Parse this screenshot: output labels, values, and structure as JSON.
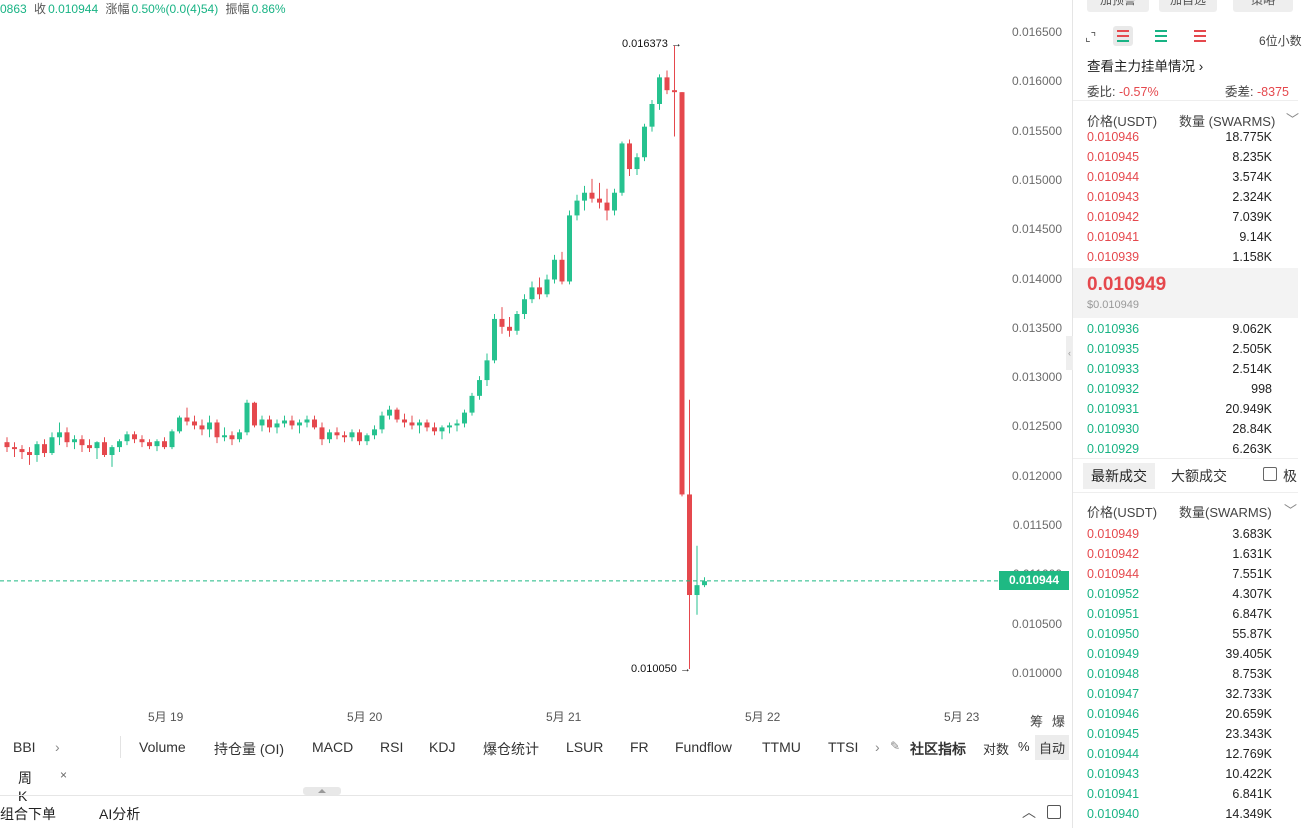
{
  "info": {
    "open_partial": "0863",
    "close_label": "收",
    "close": "0.010944",
    "change_label": "涨幅",
    "change": "0.50%(0.0(4)54)",
    "amp_label": "振幅",
    "amp": "0.86%"
  },
  "chart_data": {
    "type": "candlestick",
    "y_ticks": [
      "0.016500",
      "0.016000",
      "0.015500",
      "0.015000",
      "0.014500",
      "0.014000",
      "0.013500",
      "0.013000",
      "0.012500",
      "0.012000",
      "0.011500",
      "0.011000",
      "0.010500",
      "0.010000"
    ],
    "x_ticks": [
      "5月 19",
      "5月 20",
      "5月 21",
      "5月 22",
      "5月 23"
    ],
    "high_label": "0.016373",
    "low_label": "0.010050",
    "last_price": "0.010944",
    "ylim": [
      0.01,
      0.01655
    ],
    "colors": {
      "up": "#26c28f",
      "down": "#e5484d"
    },
    "candles": [
      [
        0.01235,
        0.0124,
        0.01225,
        0.0123
      ],
      [
        0.0123,
        0.01235,
        0.0122,
        0.01228
      ],
      [
        0.01228,
        0.01232,
        0.01218,
        0.01225
      ],
      [
        0.01225,
        0.0123,
        0.01212,
        0.01222
      ],
      [
        0.01222,
        0.01236,
        0.01215,
        0.01233
      ],
      [
        0.01233,
        0.01238,
        0.0122,
        0.01224
      ],
      [
        0.01224,
        0.01245,
        0.01222,
        0.0124
      ],
      [
        0.0124,
        0.01255,
        0.01232,
        0.01245
      ],
      [
        0.01245,
        0.0125,
        0.0123,
        0.01235
      ],
      [
        0.01235,
        0.01242,
        0.01228,
        0.01238
      ],
      [
        0.01238,
        0.01242,
        0.01225,
        0.01232
      ],
      [
        0.01232,
        0.01238,
        0.01225,
        0.01229
      ],
      [
        0.01229,
        0.01236,
        0.01218,
        0.01235
      ],
      [
        0.01235,
        0.0124,
        0.0122,
        0.01222
      ],
      [
        0.01222,
        0.01232,
        0.0121,
        0.0123
      ],
      [
        0.0123,
        0.01238,
        0.01225,
        0.01236
      ],
      [
        0.01236,
        0.01246,
        0.01232,
        0.01243
      ],
      [
        0.01243,
        0.01246,
        0.01234,
        0.01238
      ],
      [
        0.01238,
        0.01242,
        0.0123,
        0.01235
      ],
      [
        0.01235,
        0.01238,
        0.01228,
        0.01231
      ],
      [
        0.01231,
        0.01238,
        0.01226,
        0.01236
      ],
      [
        0.01236,
        0.0124,
        0.01228,
        0.0123
      ],
      [
        0.0123,
        0.01248,
        0.01228,
        0.01246
      ],
      [
        0.01246,
        0.01262,
        0.01244,
        0.0126
      ],
      [
        0.0126,
        0.0127,
        0.01252,
        0.01256
      ],
      [
        0.01256,
        0.01262,
        0.01248,
        0.01252
      ],
      [
        0.01252,
        0.01258,
        0.01242,
        0.01248
      ],
      [
        0.01248,
        0.01262,
        0.0124,
        0.01255
      ],
      [
        0.01255,
        0.01258,
        0.01234,
        0.0124
      ],
      [
        0.0124,
        0.0125,
        0.01236,
        0.01242
      ],
      [
        0.01242,
        0.01246,
        0.01232,
        0.01238
      ],
      [
        0.01238,
        0.01248,
        0.01235,
        0.01245
      ],
      [
        0.01245,
        0.01278,
        0.01242,
        0.01275
      ],
      [
        0.01275,
        0.01276,
        0.0125,
        0.01252
      ],
      [
        0.01252,
        0.01262,
        0.01246,
        0.01258
      ],
      [
        0.01258,
        0.01262,
        0.01245,
        0.0125
      ],
      [
        0.0125,
        0.01258,
        0.01244,
        0.01254
      ],
      [
        0.01254,
        0.01262,
        0.0125,
        0.01257
      ],
      [
        0.01257,
        0.01262,
        0.01248,
        0.01252
      ],
      [
        0.01252,
        0.01258,
        0.01244,
        0.01255
      ],
      [
        0.01255,
        0.01262,
        0.0125,
        0.01258
      ],
      [
        0.01258,
        0.01262,
        0.01248,
        0.0125
      ],
      [
        0.0125,
        0.01255,
        0.01232,
        0.01238
      ],
      [
        0.01238,
        0.01248,
        0.01234,
        0.01245
      ],
      [
        0.01245,
        0.0125,
        0.01238,
        0.01242
      ],
      [
        0.01242,
        0.01246,
        0.01235,
        0.0124
      ],
      [
        0.0124,
        0.01248,
        0.01236,
        0.01245
      ],
      [
        0.01245,
        0.01248,
        0.01232,
        0.01236
      ],
      [
        0.01236,
        0.01244,
        0.01232,
        0.01242
      ],
      [
        0.01242,
        0.01252,
        0.01238,
        0.01248
      ],
      [
        0.01248,
        0.01266,
        0.01244,
        0.01262
      ],
      [
        0.01262,
        0.01272,
        0.01258,
        0.01268
      ],
      [
        0.01268,
        0.0127,
        0.01255,
        0.01258
      ],
      [
        0.01258,
        0.01264,
        0.0125,
        0.01255
      ],
      [
        0.01255,
        0.01262,
        0.01248,
        0.01252
      ],
      [
        0.01252,
        0.01258,
        0.01244,
        0.01255
      ],
      [
        0.01255,
        0.01258,
        0.01246,
        0.0125
      ],
      [
        0.0125,
        0.01255,
        0.01242,
        0.01246
      ],
      [
        0.01246,
        0.01252,
        0.01238,
        0.0125
      ],
      [
        0.0125,
        0.01255,
        0.01244,
        0.01252
      ],
      [
        0.01252,
        0.01258,
        0.01246,
        0.01254
      ],
      [
        0.01254,
        0.01268,
        0.0125,
        0.01265
      ],
      [
        0.01265,
        0.01285,
        0.01262,
        0.01282
      ],
      [
        0.01282,
        0.01302,
        0.01278,
        0.01298
      ],
      [
        0.01298,
        0.01325,
        0.01292,
        0.01318
      ],
      [
        0.01318,
        0.01365,
        0.01315,
        0.0136
      ],
      [
        0.0136,
        0.01372,
        0.01345,
        0.01352
      ],
      [
        0.01352,
        0.01362,
        0.01342,
        0.01348
      ],
      [
        0.01348,
        0.01368,
        0.01344,
        0.01365
      ],
      [
        0.01365,
        0.01385,
        0.0136,
        0.0138
      ],
      [
        0.0138,
        0.01398,
        0.01376,
        0.01392
      ],
      [
        0.01392,
        0.01402,
        0.0138,
        0.01385
      ],
      [
        0.01385,
        0.01405,
        0.01382,
        0.014
      ],
      [
        0.014,
        0.01425,
        0.01396,
        0.0142
      ],
      [
        0.0142,
        0.01428,
        0.01395,
        0.01398
      ],
      [
        0.01398,
        0.0147,
        0.01395,
        0.01465
      ],
      [
        0.01465,
        0.01486,
        0.0146,
        0.0148
      ],
      [
        0.0148,
        0.01495,
        0.0147,
        0.01488
      ],
      [
        0.01488,
        0.01502,
        0.01478,
        0.01482
      ],
      [
        0.01482,
        0.01498,
        0.01472,
        0.01478
      ],
      [
        0.01478,
        0.01492,
        0.0146,
        0.0147
      ],
      [
        0.0147,
        0.01492,
        0.01465,
        0.01488
      ],
      [
        0.01488,
        0.0154,
        0.01485,
        0.01538
      ],
      [
        0.01538,
        0.01542,
        0.01505,
        0.01512
      ],
      [
        0.01512,
        0.01528,
        0.01506,
        0.01524
      ],
      [
        0.01524,
        0.01558,
        0.0152,
        0.01555
      ],
      [
        0.01555,
        0.01582,
        0.0155,
        0.01578
      ],
      [
        0.01578,
        0.01608,
        0.01572,
        0.01605
      ],
      [
        0.01605,
        0.01612,
        0.01588,
        0.01592
      ],
      [
        0.01592,
        0.01637,
        0.01545,
        0.0159
      ],
      [
        0.0159,
        0.0159,
        0.0118,
        0.01182
      ],
      [
        0.01182,
        0.01278,
        0.01005,
        0.0108
      ],
      [
        0.0108,
        0.0113,
        0.0106,
        0.0109
      ],
      [
        0.0109,
        0.01098,
        0.01088,
        0.01094
      ]
    ]
  },
  "indicators": {
    "left": "BBI",
    "tabs": [
      "Volume",
      "持仓量 (OI)",
      "MACD",
      "RSI",
      "KDJ",
      "爆仓统计",
      "LSUR",
      "FR",
      "Fundflow",
      "TTMU",
      "TTSI"
    ],
    "community": "社区指标",
    "log": "对数",
    "pct": "%",
    "auto": "自动",
    "right_marks": [
      "筹",
      "爆"
    ]
  },
  "period": {
    "label": "周K",
    "close": "×"
  },
  "bottom_tabs": {
    "left": "组合下单",
    "ai": "AI分析"
  },
  "right_panel": {
    "top_buttons": [
      "加预警",
      "加自选",
      "策略"
    ],
    "precision": "6位小数",
    "main_orders": "查看主力挂单情况",
    "ratio_label": "委比:",
    "ratio": "-0.57%",
    "diff_label": "委差:",
    "diff": "-8375",
    "col_price": "价格(USDT)",
    "col_qty": "数量 (SWARMS)",
    "asks": [
      {
        "p": "0.010946",
        "q": "18.775K"
      },
      {
        "p": "0.010945",
        "q": "8.235K"
      },
      {
        "p": "0.010944",
        "q": "3.574K"
      },
      {
        "p": "0.010943",
        "q": "2.324K"
      },
      {
        "p": "0.010942",
        "q": "7.039K"
      },
      {
        "p": "0.010941",
        "q": "9.14K"
      },
      {
        "p": "0.010939",
        "q": "1.158K"
      }
    ],
    "last_price": "0.010949",
    "last_usd": "$0.010949",
    "bids": [
      {
        "p": "0.010936",
        "q": "9.062K"
      },
      {
        "p": "0.010935",
        "q": "2.505K"
      },
      {
        "p": "0.010933",
        "q": "2.514K"
      },
      {
        "p": "0.010932",
        "q": "998"
      },
      {
        "p": "0.010931",
        "q": "20.949K"
      },
      {
        "p": "0.010930",
        "q": "28.84K"
      },
      {
        "p": "0.010929",
        "q": "6.263K"
      }
    ],
    "trade_tabs": [
      "最新成交",
      "大额成交",
      "极"
    ],
    "trades_col_price": "价格(USDT)",
    "trades_col_qty": "数量(SWARMS)",
    "trades": [
      {
        "p": "0.010949",
        "q": "3.683K",
        "s": "sell"
      },
      {
        "p": "0.010942",
        "q": "1.631K",
        "s": "sell"
      },
      {
        "p": "0.010944",
        "q": "7.551K",
        "s": "sell"
      },
      {
        "p": "0.010952",
        "q": "4.307K",
        "s": "buy"
      },
      {
        "p": "0.010951",
        "q": "6.847K",
        "s": "buy"
      },
      {
        "p": "0.010950",
        "q": "55.87K",
        "s": "buy"
      },
      {
        "p": "0.010949",
        "q": "39.405K",
        "s": "buy"
      },
      {
        "p": "0.010948",
        "q": "8.753K",
        "s": "buy"
      },
      {
        "p": "0.010947",
        "q": "32.733K",
        "s": "buy"
      },
      {
        "p": "0.010946",
        "q": "20.659K",
        "s": "buy"
      },
      {
        "p": "0.010945",
        "q": "23.343K",
        "s": "buy"
      },
      {
        "p": "0.010944",
        "q": "12.769K",
        "s": "buy"
      },
      {
        "p": "0.010943",
        "q": "10.422K",
        "s": "buy"
      },
      {
        "p": "0.010941",
        "q": "6.841K",
        "s": "buy"
      },
      {
        "p": "0.010940",
        "q": "14.349K",
        "s": "buy"
      }
    ]
  }
}
